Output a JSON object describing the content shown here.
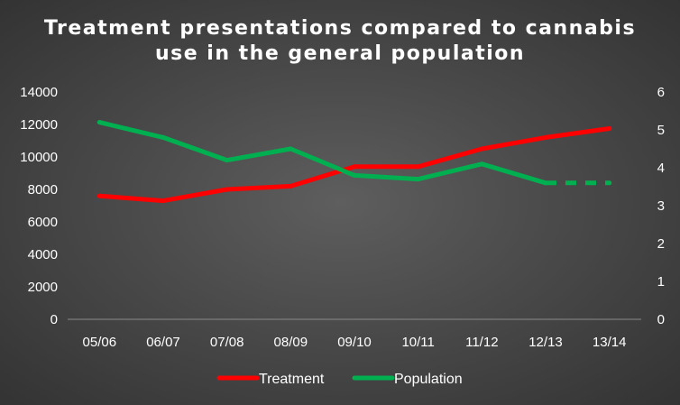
{
  "chart_data": {
    "type": "line",
    "title_lines": [
      "Treatment presentations compared to cannabis",
      "use in the general population"
    ],
    "categories": [
      "05/06",
      "06/07",
      "07/08",
      "08/09",
      "09/10",
      "10/11",
      "11/12",
      "12/13",
      "13/14"
    ],
    "series": [
      {
        "name": "Treatment",
        "axis": "left",
        "color": "#ff0000",
        "values": [
          7600,
          7300,
          8000,
          8200,
          9400,
          9400,
          10500,
          11200,
          11750
        ]
      },
      {
        "name": "Population",
        "axis": "right",
        "color": "#00b050",
        "values": [
          5.2,
          4.8,
          4.2,
          4.5,
          3.8,
          3.7,
          4.1,
          3.6,
          3.6
        ],
        "dashed_last_segment": true
      }
    ],
    "y_left": {
      "min": 0,
      "max": 14000,
      "ticks": [
        "0",
        "2000",
        "4000",
        "6000",
        "8000",
        "10000",
        "12000",
        "14000"
      ]
    },
    "y_right": {
      "min": 0,
      "max": 6,
      "ticks": [
        "0",
        "1",
        "2",
        "3",
        "4",
        "5",
        "6"
      ]
    },
    "grid": false,
    "legend_position": "bottom"
  }
}
